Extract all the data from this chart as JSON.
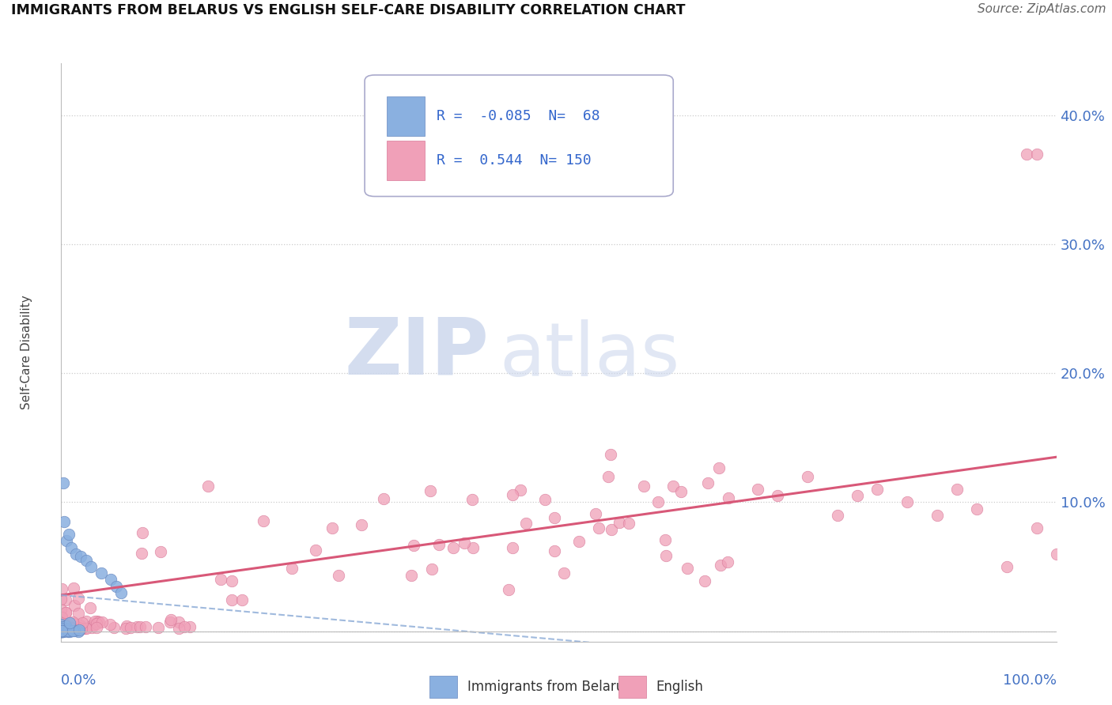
{
  "title": "IMMIGRANTS FROM BELARUS VS ENGLISH SELF-CARE DISABILITY CORRELATION CHART",
  "source": "Source: ZipAtlas.com",
  "ylabel": "Self-Care Disability",
  "xlim": [
    0.0,
    1.0
  ],
  "ylim": [
    -0.008,
    0.44
  ],
  "blue_R": -0.085,
  "blue_N": 68,
  "pink_R": 0.544,
  "pink_N": 150,
  "blue_color": "#8ab0e0",
  "pink_color": "#f0a0b8",
  "blue_edge": "#6888c0",
  "pink_edge": "#d87898",
  "blue_line_color": "#90aed8",
  "pink_line_color": "#d85878",
  "watermark_zip": "ZIP",
  "watermark_atlas": "atlas",
  "watermark_color": "#dde8f4",
  "legend_label_blue": "Immigrants from Belarus",
  "legend_label_pink": "English",
  "y_ticks": [
    0.0,
    0.1,
    0.2,
    0.3,
    0.4
  ],
  "y_tick_labels": [
    "",
    "10.0%",
    "20.0%",
    "30.0%",
    "40.0%"
  ],
  "pink_line_x0": 0.0,
  "pink_line_y0": 0.028,
  "pink_line_x1": 1.0,
  "pink_line_y1": 0.135,
  "blue_line_x0": 0.0,
  "blue_line_y0": 0.028,
  "blue_line_x1": 0.55,
  "blue_line_y1": -0.01
}
